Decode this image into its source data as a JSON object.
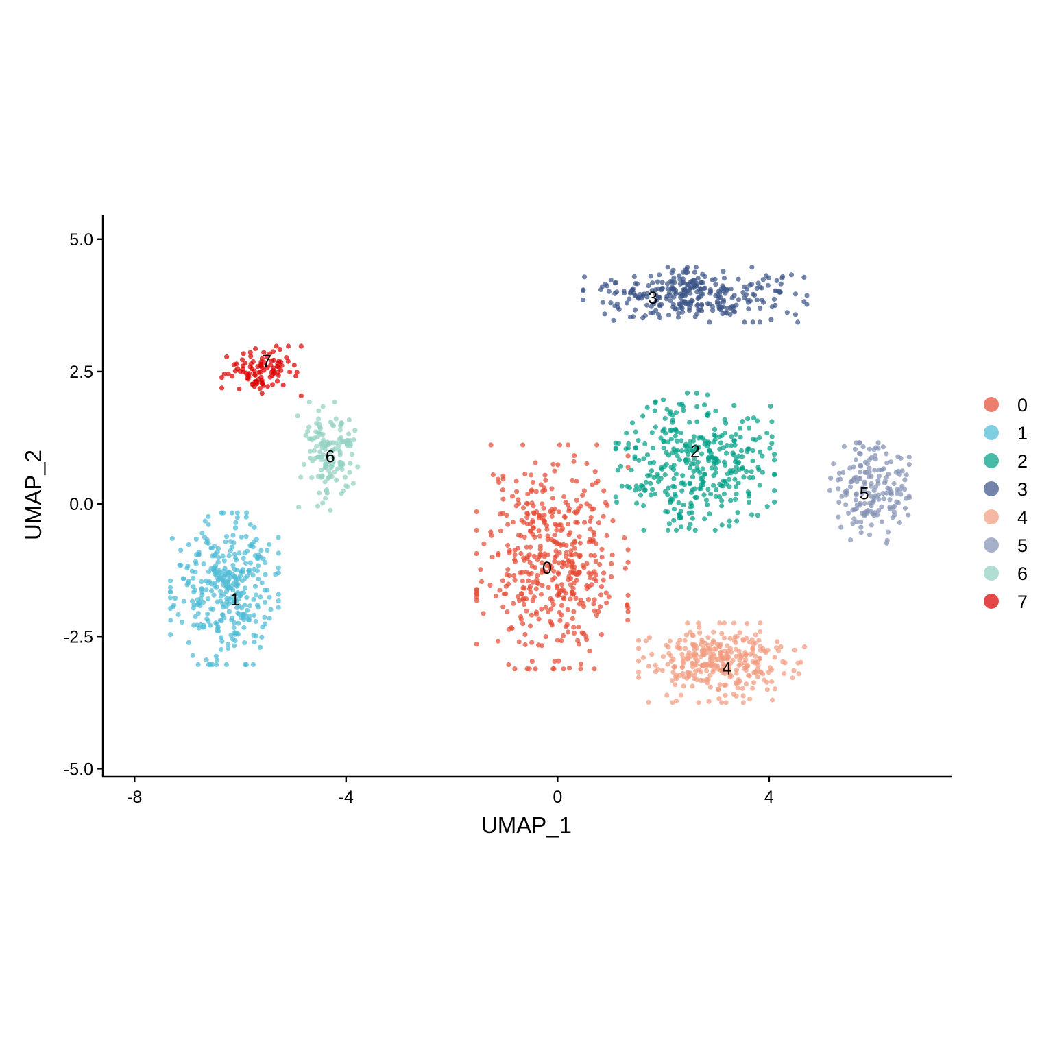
{
  "chart_data": {
    "type": "scatter",
    "title": "",
    "xlabel": "UMAP_1",
    "ylabel": "UMAP_2",
    "xlim": [
      -8.6,
      7.45
    ],
    "ylim": [
      -5.15,
      5.45
    ],
    "x_ticks": [
      {
        "value": -8,
        "label": "-8"
      },
      {
        "value": -4,
        "label": "-4"
      },
      {
        "value": 0,
        "label": "0"
      },
      {
        "value": 4,
        "label": "4"
      }
    ],
    "y_ticks": [
      {
        "value": 5.0,
        "label": "5.0"
      },
      {
        "value": 2.5,
        "label": "2.5"
      },
      {
        "value": 0.0,
        "label": "0.0"
      },
      {
        "value": -2.5,
        "label": "-2.5"
      },
      {
        "value": -5.0,
        "label": "-5.0"
      }
    ],
    "grid": false,
    "legend_position": "right",
    "clusters": [
      {
        "name": "0",
        "color": "#E64B35",
        "label_pos": [
          -0.2,
          -1.2
        ],
        "center": [
          -0.1,
          -1.0
        ],
        "spread": [
          1.05,
          1.55
        ],
        "n": 460,
        "seed": 11
      },
      {
        "name": "1",
        "color": "#4DBBD5",
        "label_pos": [
          -6.1,
          -1.8
        ],
        "center": [
          -6.3,
          -1.6
        ],
        "spread": [
          0.75,
          1.05
        ],
        "n": 340,
        "seed": 23
      },
      {
        "name": "2",
        "color": "#00A087",
        "label_pos": [
          2.6,
          1.0
        ],
        "center": [
          2.6,
          0.8
        ],
        "spread": [
          1.1,
          0.95
        ],
        "n": 360,
        "seed": 37
      },
      {
        "name": "3",
        "color": "#3C5488",
        "label_pos": [
          1.8,
          3.9
        ],
        "center": [
          2.6,
          3.95
        ],
        "spread": [
          1.55,
          0.38
        ],
        "n": 300,
        "seed": 41
      },
      {
        "name": "4",
        "color": "#F39B7F",
        "label_pos": [
          3.2,
          -3.1
        ],
        "center": [
          3.1,
          -3.0
        ],
        "spread": [
          1.15,
          0.55
        ],
        "n": 320,
        "seed": 53
      },
      {
        "name": "5",
        "color": "#8491B4",
        "label_pos": [
          5.8,
          0.2
        ],
        "center": [
          5.9,
          0.2
        ],
        "spread": [
          0.55,
          0.7
        ],
        "n": 170,
        "seed": 67
      },
      {
        "name": "6",
        "color": "#91D1C2",
        "label_pos": [
          -4.3,
          0.9
        ],
        "center": [
          -4.3,
          0.9
        ],
        "spread": [
          0.45,
          0.75
        ],
        "n": 140,
        "seed": 71
      },
      {
        "name": "7",
        "color": "#DC0000",
        "label_pos": [
          -5.5,
          2.7
        ],
        "center": [
          -5.6,
          2.5
        ],
        "spread": [
          0.55,
          0.35
        ],
        "n": 100,
        "seed": 83
      }
    ]
  }
}
